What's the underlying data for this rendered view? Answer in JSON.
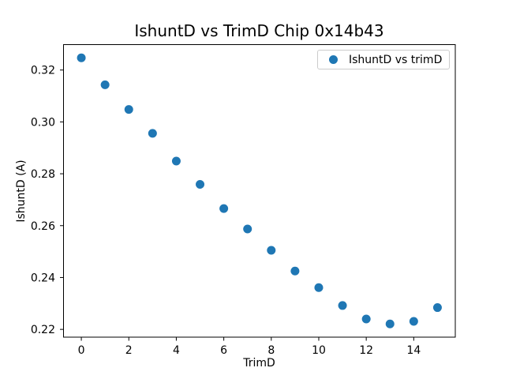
{
  "chart_data": {
    "type": "scatter",
    "title": "IshuntD vs TrimD Chip 0x14b43",
    "xlabel": "TrimD",
    "ylabel": "IshuntD (A)",
    "xlim": [
      -0.75,
      15.75
    ],
    "ylim": [
      0.217,
      0.3298
    ],
    "grid": false,
    "xticks": {
      "values": [
        0,
        2,
        4,
        6,
        8,
        10,
        12,
        14
      ],
      "labels": [
        "0",
        "2",
        "4",
        "6",
        "8",
        "10",
        "12",
        "14"
      ]
    },
    "yticks": {
      "values": [
        0.22,
        0.24,
        0.26,
        0.28,
        0.3,
        0.32
      ],
      "labels": [
        "0.22",
        "0.24",
        "0.26",
        "0.28",
        "0.30",
        "0.32"
      ]
    },
    "legend": {
      "location": "upper right",
      "label": "IshuntD vs trimD"
    },
    "series": [
      {
        "name": "IshuntD vs trimD",
        "marker": "circle",
        "color": "#1f77b4",
        "x": [
          0,
          1,
          2,
          3,
          4,
          5,
          6,
          7,
          8,
          9,
          10,
          11,
          12,
          13,
          14,
          15
        ],
        "y": [
          0.3247,
          0.3143,
          0.3048,
          0.2956,
          0.2849,
          0.2759,
          0.2666,
          0.2587,
          0.2505,
          0.2425,
          0.2361,
          0.2292,
          0.224,
          0.2221,
          0.2231,
          0.2284
        ]
      }
    ]
  },
  "colors": {
    "marker": "#1f77b4",
    "axis": "#000000",
    "legend_border": "#cccccc",
    "background": "#ffffff"
  }
}
